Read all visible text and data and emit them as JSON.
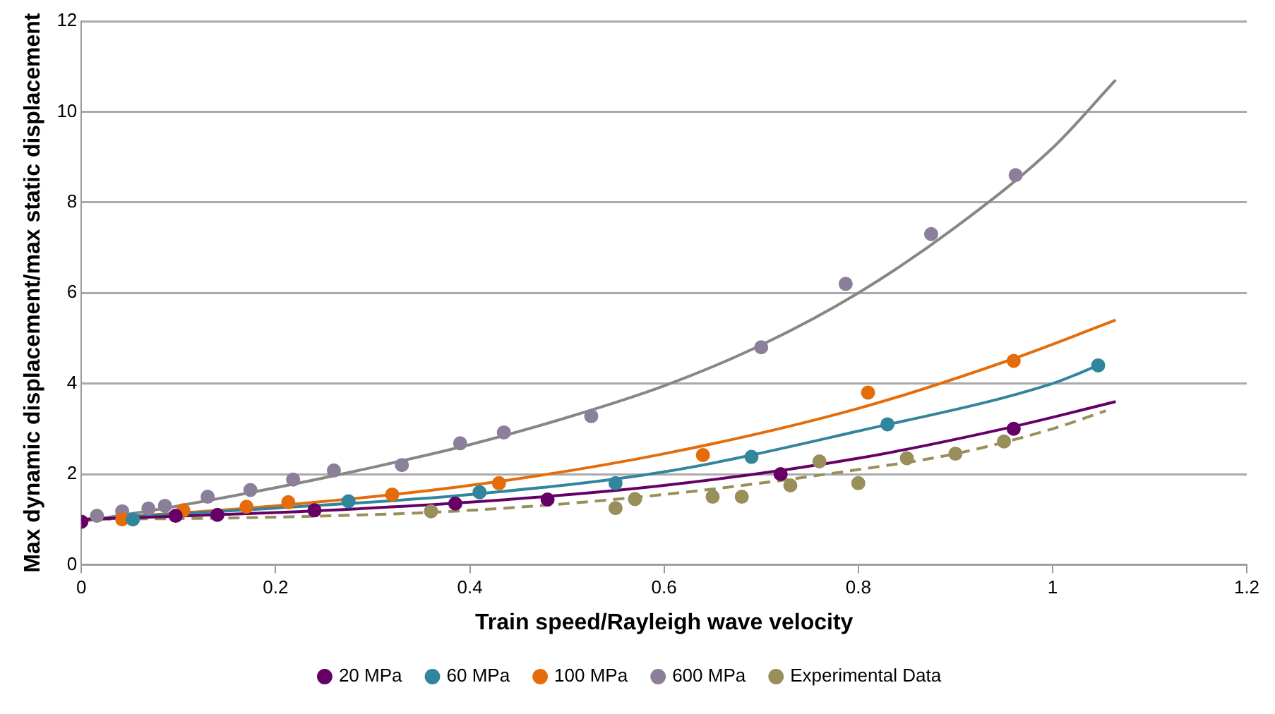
{
  "chart_data": {
    "type": "scatter",
    "xlabel": "Train speed/Rayleigh wave velocity",
    "ylabel": "Max dynamic displacement/max static displacement",
    "xlim": [
      0,
      1.2
    ],
    "xticks": [
      0,
      0.2,
      0.4,
      0.6,
      0.8,
      1,
      1.2
    ],
    "ylim": [
      0,
      12
    ],
    "yticks": [
      0,
      2,
      4,
      6,
      8,
      10,
      12
    ],
    "grid": "y",
    "legend": "bottom",
    "series": [
      {
        "name": "20 MPa",
        "marker": "circle",
        "color": "#660066",
        "x": [
          0,
          0.097,
          0.14,
          0.24,
          0.385,
          0.48,
          0.72,
          0.96
        ],
        "values": [
          0.95,
          1.08,
          1.1,
          1.2,
          1.35,
          1.44,
          2.0,
          3.0
        ]
      },
      {
        "name": "60 MPa",
        "marker": "circle",
        "color": "#31859c",
        "x": [
          0.053,
          0.275,
          0.41,
          0.55,
          0.69,
          0.83,
          1.047
        ],
        "values": [
          1.0,
          1.4,
          1.6,
          1.8,
          2.38,
          3.1,
          4.4
        ]
      },
      {
        "name": "100 MPa",
        "marker": "circle",
        "color": "#e46c0a",
        "x": [
          0.042,
          0.105,
          0.17,
          0.213,
          0.32,
          0.43,
          0.64,
          0.81,
          0.96
        ],
        "values": [
          1.0,
          1.2,
          1.28,
          1.38,
          1.55,
          1.8,
          2.42,
          3.8,
          4.5
        ]
      },
      {
        "name": "600 MPa",
        "marker": "circle",
        "color": "#8b7f99",
        "x": [
          0.016,
          0.042,
          0.069,
          0.086,
          0.13,
          0.174,
          0.218,
          0.26,
          0.33,
          0.39,
          0.435,
          0.525,
          0.7,
          0.787,
          0.875,
          0.962
        ],
        "values": [
          1.08,
          1.18,
          1.24,
          1.3,
          1.5,
          1.65,
          1.88,
          2.08,
          2.2,
          2.68,
          2.92,
          3.28,
          4.8,
          6.2,
          7.3,
          8.6
        ]
      },
      {
        "name": "Experimental Data",
        "marker": "circle",
        "color": "#998f5a",
        "x": [
          0.36,
          0.55,
          0.57,
          0.65,
          0.68,
          0.73,
          0.76,
          0.8,
          0.85,
          0.9,
          0.95
        ],
        "values": [
          1.18,
          1.25,
          1.45,
          1.5,
          1.5,
          1.75,
          2.28,
          1.8,
          2.35,
          2.45,
          2.72
        ]
      },
      {
        "type": "line",
        "marker": "none",
        "color": "#660066",
        "line_style": "solid",
        "x": [
          0,
          0.2,
          0.4,
          0.6,
          0.8,
          0.96,
          1.065
        ],
        "values": [
          1.0,
          1.15,
          1.38,
          1.75,
          2.35,
          3.05,
          3.6
        ]
      },
      {
        "type": "line",
        "marker": "none",
        "color": "#31859c",
        "line_style": "solid",
        "x": [
          0,
          0.2,
          0.4,
          0.6,
          0.8,
          1.0,
          1.047
        ],
        "values": [
          1.0,
          1.25,
          1.55,
          2.05,
          2.95,
          4.0,
          4.4
        ]
      },
      {
        "type": "line",
        "marker": "none",
        "color": "#e46c0a",
        "line_style": "solid",
        "x": [
          0,
          0.2,
          0.4,
          0.6,
          0.8,
          0.96,
          1.065
        ],
        "values": [
          1.0,
          1.3,
          1.75,
          2.45,
          3.45,
          4.55,
          5.4
        ]
      },
      {
        "type": "line",
        "marker": "none",
        "color": "#878787",
        "line_style": "solid",
        "x": [
          0,
          0.1,
          0.2,
          0.3,
          0.4,
          0.5,
          0.6,
          0.7,
          0.8,
          0.9,
          1.0,
          1.065
        ],
        "values": [
          0.95,
          1.3,
          1.7,
          2.15,
          2.65,
          3.25,
          3.95,
          4.85,
          6.0,
          7.45,
          9.2,
          10.7
        ]
      },
      {
        "type": "line",
        "marker": "none",
        "color": "#998f5a",
        "line_style": "dashed",
        "x": [
          0,
          0.2,
          0.4,
          0.6,
          0.8,
          0.9,
          1.0,
          1.055
        ],
        "values": [
          1.0,
          1.05,
          1.2,
          1.55,
          2.1,
          2.45,
          3.0,
          3.4
        ]
      }
    ]
  }
}
